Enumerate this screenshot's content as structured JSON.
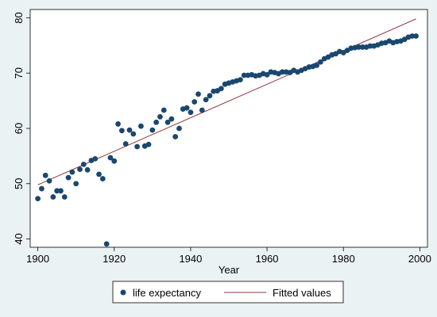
{
  "chart_data": {
    "type": "scatter",
    "title": "",
    "xlabel": "Year",
    "ylabel": "",
    "xlim": [
      1898,
      2002
    ],
    "ylim": [
      38.5,
      81.5
    ],
    "xticks": [
      "1900",
      "1920",
      "1940",
      "1960",
      "1980",
      "2000"
    ],
    "yticks": [
      "40",
      "50",
      "60",
      "70",
      "80"
    ],
    "grid": false,
    "legend_position": "bottom",
    "series": [
      {
        "name": "life expectancy",
        "kind": "scatter",
        "color": "#1a476f",
        "points": [
          [
            1900,
            47.3
          ],
          [
            1901,
            49.1
          ],
          [
            1902,
            51.5
          ],
          [
            1903,
            50.5
          ],
          [
            1904,
            47.6
          ],
          [
            1905,
            48.7
          ],
          [
            1906,
            48.7
          ],
          [
            1907,
            47.6
          ],
          [
            1908,
            51.1
          ],
          [
            1909,
            52.1
          ],
          [
            1910,
            50.0
          ],
          [
            1911,
            52.6
          ],
          [
            1912,
            53.5
          ],
          [
            1913,
            52.5
          ],
          [
            1914,
            54.2
          ],
          [
            1915,
            54.5
          ],
          [
            1916,
            51.7
          ],
          [
            1917,
            50.9
          ],
          [
            1918,
            39.1
          ],
          [
            1919,
            54.7
          ],
          [
            1920,
            54.1
          ],
          [
            1921,
            60.8
          ],
          [
            1922,
            59.6
          ],
          [
            1923,
            57.2
          ],
          [
            1924,
            59.7
          ],
          [
            1925,
            59.0
          ],
          [
            1926,
            56.7
          ],
          [
            1927,
            60.4
          ],
          [
            1928,
            56.8
          ],
          [
            1929,
            57.1
          ],
          [
            1930,
            59.7
          ],
          [
            1931,
            61.1
          ],
          [
            1932,
            62.1
          ],
          [
            1933,
            63.3
          ],
          [
            1934,
            61.1
          ],
          [
            1935,
            61.7
          ],
          [
            1936,
            58.5
          ],
          [
            1937,
            60.0
          ],
          [
            1938,
            63.5
          ],
          [
            1939,
            63.7
          ],
          [
            1940,
            62.9
          ],
          [
            1941,
            64.8
          ],
          [
            1942,
            66.2
          ],
          [
            1943,
            63.3
          ],
          [
            1944,
            65.2
          ],
          [
            1945,
            65.9
          ],
          [
            1946,
            66.7
          ],
          [
            1947,
            66.8
          ],
          [
            1948,
            67.2
          ],
          [
            1949,
            68.0
          ],
          [
            1950,
            68.2
          ],
          [
            1951,
            68.4
          ],
          [
            1952,
            68.6
          ],
          [
            1953,
            68.8
          ],
          [
            1954,
            69.6
          ],
          [
            1955,
            69.6
          ],
          [
            1956,
            69.7
          ],
          [
            1957,
            69.5
          ],
          [
            1958,
            69.6
          ],
          [
            1959,
            69.9
          ],
          [
            1960,
            69.7
          ],
          [
            1961,
            70.2
          ],
          [
            1962,
            70.1
          ],
          [
            1963,
            69.9
          ],
          [
            1964,
            70.2
          ],
          [
            1965,
            70.2
          ],
          [
            1966,
            70.1
          ],
          [
            1967,
            70.5
          ],
          [
            1968,
            70.2
          ],
          [
            1969,
            70.5
          ],
          [
            1970,
            70.8
          ],
          [
            1971,
            71.1
          ],
          [
            1972,
            71.2
          ],
          [
            1973,
            71.4
          ],
          [
            1974,
            72.0
          ],
          [
            1975,
            72.6
          ],
          [
            1976,
            72.9
          ],
          [
            1977,
            73.3
          ],
          [
            1978,
            73.5
          ],
          [
            1979,
            73.9
          ],
          [
            1980,
            73.7
          ],
          [
            1981,
            74.1
          ],
          [
            1982,
            74.5
          ],
          [
            1983,
            74.6
          ],
          [
            1984,
            74.7
          ],
          [
            1985,
            74.7
          ],
          [
            1986,
            74.7
          ],
          [
            1987,
            74.9
          ],
          [
            1988,
            74.9
          ],
          [
            1989,
            75.1
          ],
          [
            1990,
            75.4
          ],
          [
            1991,
            75.5
          ],
          [
            1992,
            75.8
          ],
          [
            1993,
            75.5
          ],
          [
            1994,
            75.7
          ],
          [
            1995,
            75.8
          ],
          [
            1996,
            76.1
          ],
          [
            1997,
            76.5
          ],
          [
            1998,
            76.7
          ],
          [
            1999,
            76.7
          ]
        ]
      },
      {
        "name": "Fitted values",
        "kind": "line",
        "color": "#90353b",
        "points": [
          [
            1900,
            49.8
          ],
          [
            1999,
            79.8
          ]
        ]
      }
    ]
  }
}
